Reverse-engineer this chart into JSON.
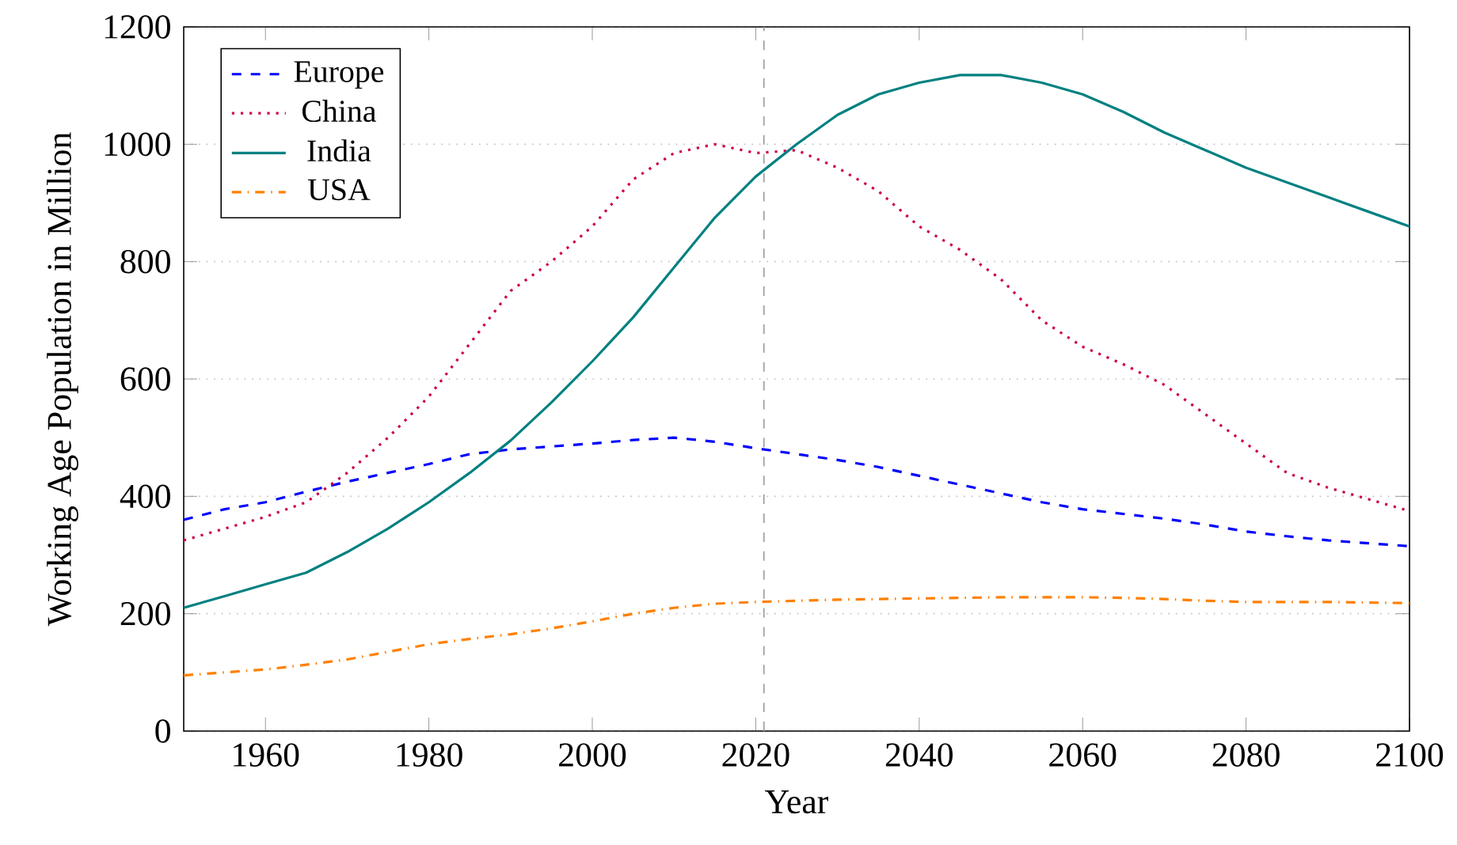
{
  "chart_data": {
    "type": "line",
    "xlabel": "Year",
    "ylabel": "Working Age Population in Million",
    "x": [
      1950,
      1955,
      1960,
      1965,
      1970,
      1975,
      1980,
      1985,
      1990,
      1995,
      2000,
      2005,
      2010,
      2015,
      2020,
      2025,
      2030,
      2035,
      2040,
      2045,
      2050,
      2055,
      2060,
      2065,
      2070,
      2075,
      2080,
      2085,
      2090,
      2095,
      2100
    ],
    "series": [
      {
        "name": "Europe",
        "color": "#0000ff",
        "line_style": "dashed",
        "values": [
          360,
          378,
          390,
          408,
          425,
          440,
          455,
          472,
          480,
          485,
          490,
          496,
          500,
          493,
          482,
          472,
          462,
          450,
          435,
          420,
          405,
          390,
          378,
          370,
          362,
          352,
          340,
          332,
          325,
          320,
          315
        ]
      },
      {
        "name": "China",
        "color": "#cc0044",
        "line_style": "dotted",
        "values": [
          325,
          345,
          365,
          390,
          440,
          500,
          570,
          660,
          750,
          800,
          860,
          940,
          985,
          1000,
          985,
          990,
          960,
          920,
          860,
          820,
          770,
          700,
          655,
          625,
          590,
          540,
          490,
          440,
          415,
          395,
          375
        ]
      },
      {
        "name": "India",
        "color": "#008080",
        "line_style": "solid",
        "values": [
          210,
          230,
          250,
          270,
          305,
          345,
          390,
          440,
          495,
          560,
          630,
          705,
          790,
          875,
          945,
          1000,
          1050,
          1085,
          1105,
          1118,
          1118,
          1105,
          1085,
          1055,
          1020,
          990,
          960,
          935,
          910,
          885,
          860
        ]
      },
      {
        "name": "USA",
        "color": "#ff8000",
        "line_style": "dashdotted",
        "values": [
          95,
          100,
          105,
          113,
          122,
          135,
          148,
          157,
          165,
          175,
          187,
          200,
          210,
          217,
          220,
          222,
          224,
          225,
          226,
          227,
          228,
          228,
          228,
          227,
          225,
          222,
          220,
          220,
          220,
          219,
          218
        ]
      }
    ],
    "xlim": [
      1950,
      2100
    ],
    "ylim": [
      0,
      1200
    ],
    "xticks": [
      1960,
      1980,
      2000,
      2020,
      2040,
      2060,
      2080,
      2100
    ],
    "yticks": [
      0,
      200,
      400,
      600,
      800,
      1000,
      1200
    ],
    "grid": "y",
    "legend": "top left",
    "ref_lines": [
      {
        "axis": "x",
        "value": 2021,
        "color": "#999999",
        "line_style": "dashed"
      }
    ]
  }
}
